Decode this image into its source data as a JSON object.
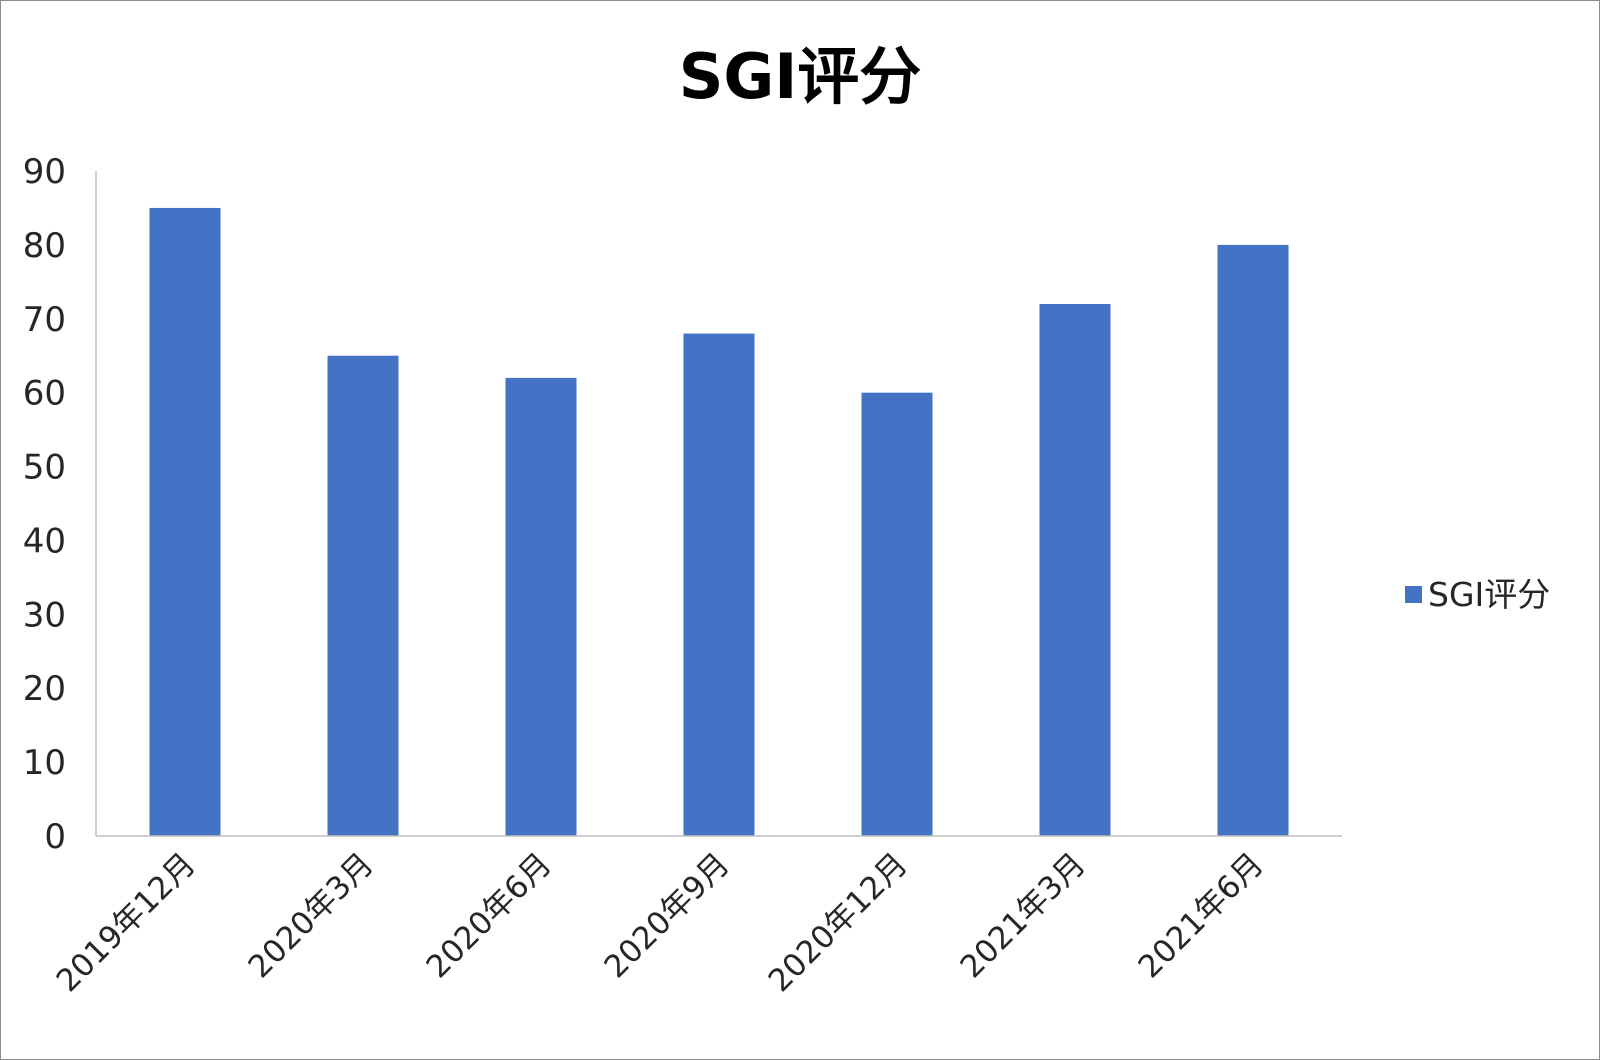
{
  "chart_data": {
    "type": "bar",
    "title": "SGI评分",
    "categories": [
      "2019年12月",
      "2020年3月",
      "2020年6月",
      "2020年9月",
      "2020年12月",
      "2021年3月",
      "2021年6月"
    ],
    "series": [
      {
        "name": "SGI评分",
        "values": [
          85,
          65,
          62,
          68,
          60,
          72,
          80
        ],
        "color": "#4472C4"
      }
    ],
    "ylim": [
      0,
      90
    ],
    "yticks": [
      0,
      10,
      20,
      30,
      40,
      50,
      60,
      70,
      80,
      90
    ],
    "grid": false,
    "legend": {
      "position": "right"
    }
  }
}
